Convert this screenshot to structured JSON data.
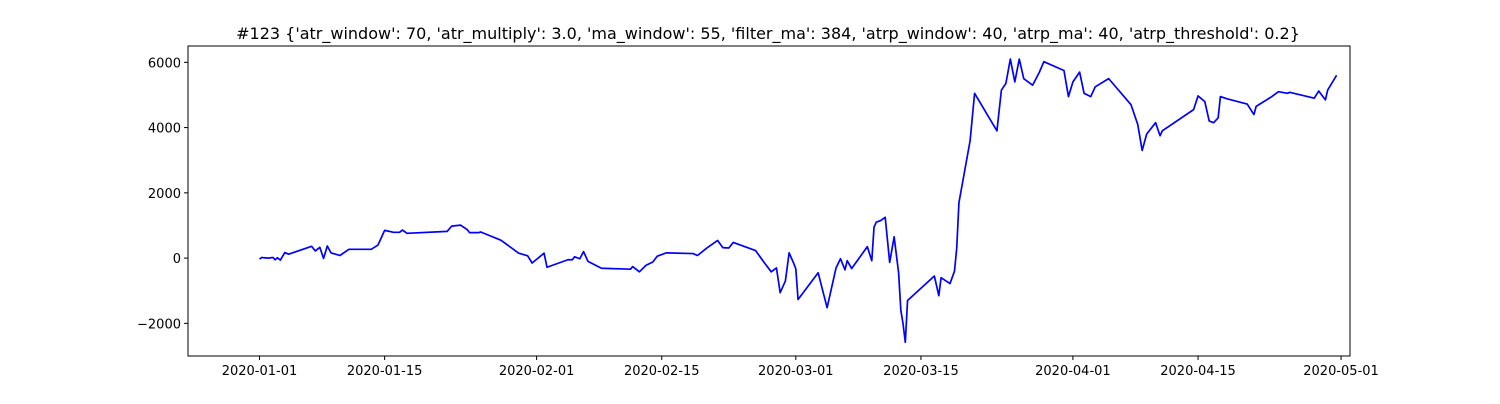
{
  "chart_data": {
    "type": "line",
    "title": "#123 {'atr_window': 70, 'atr_multiply': 3.0, 'ma_window': 55, 'filter_ma': 384, 'atrp_window': 40, 'atrp_ma': 40, 'atrp_threshold': 0.2}",
    "xlabel": "",
    "ylabel": "",
    "x_axis_type": "date",
    "xlim": [
      "2019-12-24",
      "2020-05-02"
    ],
    "ylim": [
      -3000,
      6500
    ],
    "x_ticks": [
      "2020-01-01",
      "2020-01-15",
      "2020-02-01",
      "2020-02-15",
      "2020-03-01",
      "2020-03-15",
      "2020-04-01",
      "2020-04-15",
      "2020-05-01"
    ],
    "y_ticks": [
      -2000,
      0,
      2000,
      4000,
      6000
    ],
    "y_tick_labels": [
      "−2000",
      "0",
      "2000",
      "4000",
      "6000"
    ],
    "grid": false,
    "legend": "none",
    "series": [
      {
        "color": "#0000ff",
        "points": [
          [
            "2020-01-01 00:00",
            -30
          ],
          [
            "2020-01-01 06:00",
            20
          ],
          [
            "2020-01-01 12:00",
            10
          ],
          [
            "2020-01-02 00:00",
            0
          ],
          [
            "2020-01-02 12:00",
            20
          ],
          [
            "2020-01-02 18:00",
            -50
          ],
          [
            "2020-01-03 00:00",
            10
          ],
          [
            "2020-01-03 08:00",
            -60
          ],
          [
            "2020-01-03 20:00",
            170
          ],
          [
            "2020-01-04 06:00",
            120
          ],
          [
            "2020-01-06 20:00",
            360
          ],
          [
            "2020-01-07 06:00",
            220
          ],
          [
            "2020-01-07 18:00",
            330
          ],
          [
            "2020-01-08 04:00",
            -10
          ],
          [
            "2020-01-08 14:00",
            370
          ],
          [
            "2020-01-09 00:00",
            160
          ],
          [
            "2020-01-10 00:00",
            80
          ],
          [
            "2020-01-11 00:00",
            270
          ],
          [
            "2020-01-13 12:00",
            270
          ],
          [
            "2020-01-14 06:00",
            400
          ],
          [
            "2020-01-15 00:00",
            850
          ],
          [
            "2020-01-16 00:00",
            790
          ],
          [
            "2020-01-16 16:00",
            790
          ],
          [
            "2020-01-17 00:00",
            860
          ],
          [
            "2020-01-17 12:00",
            760
          ],
          [
            "2020-01-22 00:00",
            820
          ],
          [
            "2020-01-22 12:00",
            980
          ],
          [
            "2020-01-23 12:00",
            1010
          ],
          [
            "2020-01-24 06:00",
            870
          ],
          [
            "2020-01-24 12:00",
            780
          ],
          [
            "2020-01-25 12:00",
            780
          ],
          [
            "2020-01-25 18:00",
            800
          ],
          [
            "2020-01-28 00:00",
            550
          ],
          [
            "2020-01-30 00:00",
            150
          ],
          [
            "2020-01-31 00:00",
            70
          ],
          [
            "2020-01-31 12:00",
            -150
          ],
          [
            "2020-02-01 20:00",
            150
          ],
          [
            "2020-02-02 04:00",
            -280
          ],
          [
            "2020-02-04 12:00",
            -50
          ],
          [
            "2020-02-05 00:00",
            -50
          ],
          [
            "2020-02-05 06:00",
            40
          ],
          [
            "2020-02-05 20:00",
            -20
          ],
          [
            "2020-02-06 06:00",
            200
          ],
          [
            "2020-02-06 18:00",
            -100
          ],
          [
            "2020-02-08 06:00",
            -310
          ],
          [
            "2020-02-11 12:00",
            -340
          ],
          [
            "2020-02-11 18:00",
            -260
          ],
          [
            "2020-02-12 12:00",
            -420
          ],
          [
            "2020-02-13 06:00",
            -220
          ],
          [
            "2020-02-14 00:00",
            -120
          ],
          [
            "2020-02-14 12:00",
            60
          ],
          [
            "2020-02-15 12:00",
            160
          ],
          [
            "2020-02-18 12:00",
            140
          ],
          [
            "2020-02-19 00:00",
            80
          ],
          [
            "2020-02-20 00:00",
            300
          ],
          [
            "2020-02-21 06:00",
            540
          ],
          [
            "2020-02-21 20:00",
            320
          ],
          [
            "2020-02-22 12:00",
            310
          ],
          [
            "2020-02-23 00:00",
            480
          ],
          [
            "2020-02-25 12:00",
            230
          ],
          [
            "2020-02-26 12:00",
            -150
          ],
          [
            "2020-02-27 06:00",
            -420
          ],
          [
            "2020-02-27 20:00",
            -300
          ],
          [
            "2020-02-28 06:00",
            -1060
          ],
          [
            "2020-02-28 20:00",
            -700
          ],
          [
            "2020-02-29 06:00",
            160
          ],
          [
            "2020-02-29 18:00",
            -150
          ],
          [
            "2020-03-01 00:00",
            -330
          ],
          [
            "2020-03-01 06:00",
            -1270
          ],
          [
            "2020-03-03 12:00",
            -450
          ],
          [
            "2020-03-04 12:00",
            -1520
          ],
          [
            "2020-03-05 12:00",
            -300
          ],
          [
            "2020-03-06 00:00",
            -20
          ],
          [
            "2020-03-06 12:00",
            -360
          ],
          [
            "2020-03-06 18:00",
            -80
          ],
          [
            "2020-03-07 06:00",
            -320
          ],
          [
            "2020-03-09 00:00",
            350
          ],
          [
            "2020-03-09 12:00",
            -80
          ],
          [
            "2020-03-09 18:00",
            950
          ],
          [
            "2020-03-10 00:00",
            1100
          ],
          [
            "2020-03-10 12:00",
            1150
          ],
          [
            "2020-03-11 00:00",
            1250
          ],
          [
            "2020-03-11 12:00",
            -130
          ],
          [
            "2020-03-12 00:00",
            650
          ],
          [
            "2020-03-12 12:00",
            -450
          ],
          [
            "2020-03-12 18:00",
            -1600
          ],
          [
            "2020-03-13 00:00",
            -2020
          ],
          [
            "2020-03-13 06:00",
            -2580
          ],
          [
            "2020-03-13 12:00",
            -1300
          ],
          [
            "2020-03-16 12:00",
            -550
          ],
          [
            "2020-03-17 00:00",
            -1150
          ],
          [
            "2020-03-17 06:00",
            -600
          ],
          [
            "2020-03-18 06:00",
            -780
          ],
          [
            "2020-03-18 18:00",
            -400
          ],
          [
            "2020-03-19 00:00",
            300
          ],
          [
            "2020-03-19 06:00",
            1700
          ],
          [
            "2020-03-20 12:00",
            3600
          ],
          [
            "2020-03-21 00:00",
            5050
          ],
          [
            "2020-03-23 12:00",
            3900
          ],
          [
            "2020-03-24 00:00",
            5150
          ],
          [
            "2020-03-24 12:00",
            5350
          ],
          [
            "2020-03-25 00:00",
            6100
          ],
          [
            "2020-03-25 12:00",
            5400
          ],
          [
            "2020-03-26 00:00",
            6100
          ],
          [
            "2020-03-26 12:00",
            5500
          ],
          [
            "2020-03-27 12:00",
            5300
          ],
          [
            "2020-03-28 06:00",
            5700
          ],
          [
            "2020-03-28 18:00",
            6020
          ],
          [
            "2020-03-31 00:00",
            5750
          ],
          [
            "2020-03-31 12:00",
            4950
          ],
          [
            "2020-04-01 00:00",
            5400
          ],
          [
            "2020-04-01 18:00",
            5700
          ],
          [
            "2020-04-02 06:00",
            5050
          ],
          [
            "2020-04-03 00:00",
            4950
          ],
          [
            "2020-04-03 12:00",
            5250
          ],
          [
            "2020-04-05 00:00",
            5500
          ],
          [
            "2020-04-07 12:00",
            4700
          ],
          [
            "2020-04-08 06:00",
            4100
          ],
          [
            "2020-04-08 18:00",
            3300
          ],
          [
            "2020-04-09 06:00",
            3800
          ],
          [
            "2020-04-10 06:00",
            4150
          ],
          [
            "2020-04-10 18:00",
            3750
          ],
          [
            "2020-04-11 00:00",
            3900
          ],
          [
            "2020-04-14 12:00",
            4550
          ],
          [
            "2020-04-15 00:00",
            4970
          ],
          [
            "2020-04-15 18:00",
            4800
          ],
          [
            "2020-04-16 06:00",
            4200
          ],
          [
            "2020-04-16 18:00",
            4150
          ],
          [
            "2020-04-17 06:00",
            4300
          ],
          [
            "2020-04-17 12:00",
            4950
          ],
          [
            "2020-04-18 06:00",
            4880
          ],
          [
            "2020-04-20 12:00",
            4720
          ],
          [
            "2020-04-21 06:00",
            4400
          ],
          [
            "2020-04-21 12:00",
            4650
          ],
          [
            "2020-04-23 06:00",
            4950
          ],
          [
            "2020-04-24 00:00",
            5100
          ],
          [
            "2020-04-25 00:00",
            5050
          ],
          [
            "2020-04-25 06:00",
            5080
          ],
          [
            "2020-04-28 00:00",
            4900
          ],
          [
            "2020-04-28 12:00",
            5120
          ],
          [
            "2020-04-29 06:00",
            4850
          ],
          [
            "2020-04-29 12:00",
            5150
          ],
          [
            "2020-04-30 12:00",
            5600
          ]
        ]
      }
    ]
  }
}
